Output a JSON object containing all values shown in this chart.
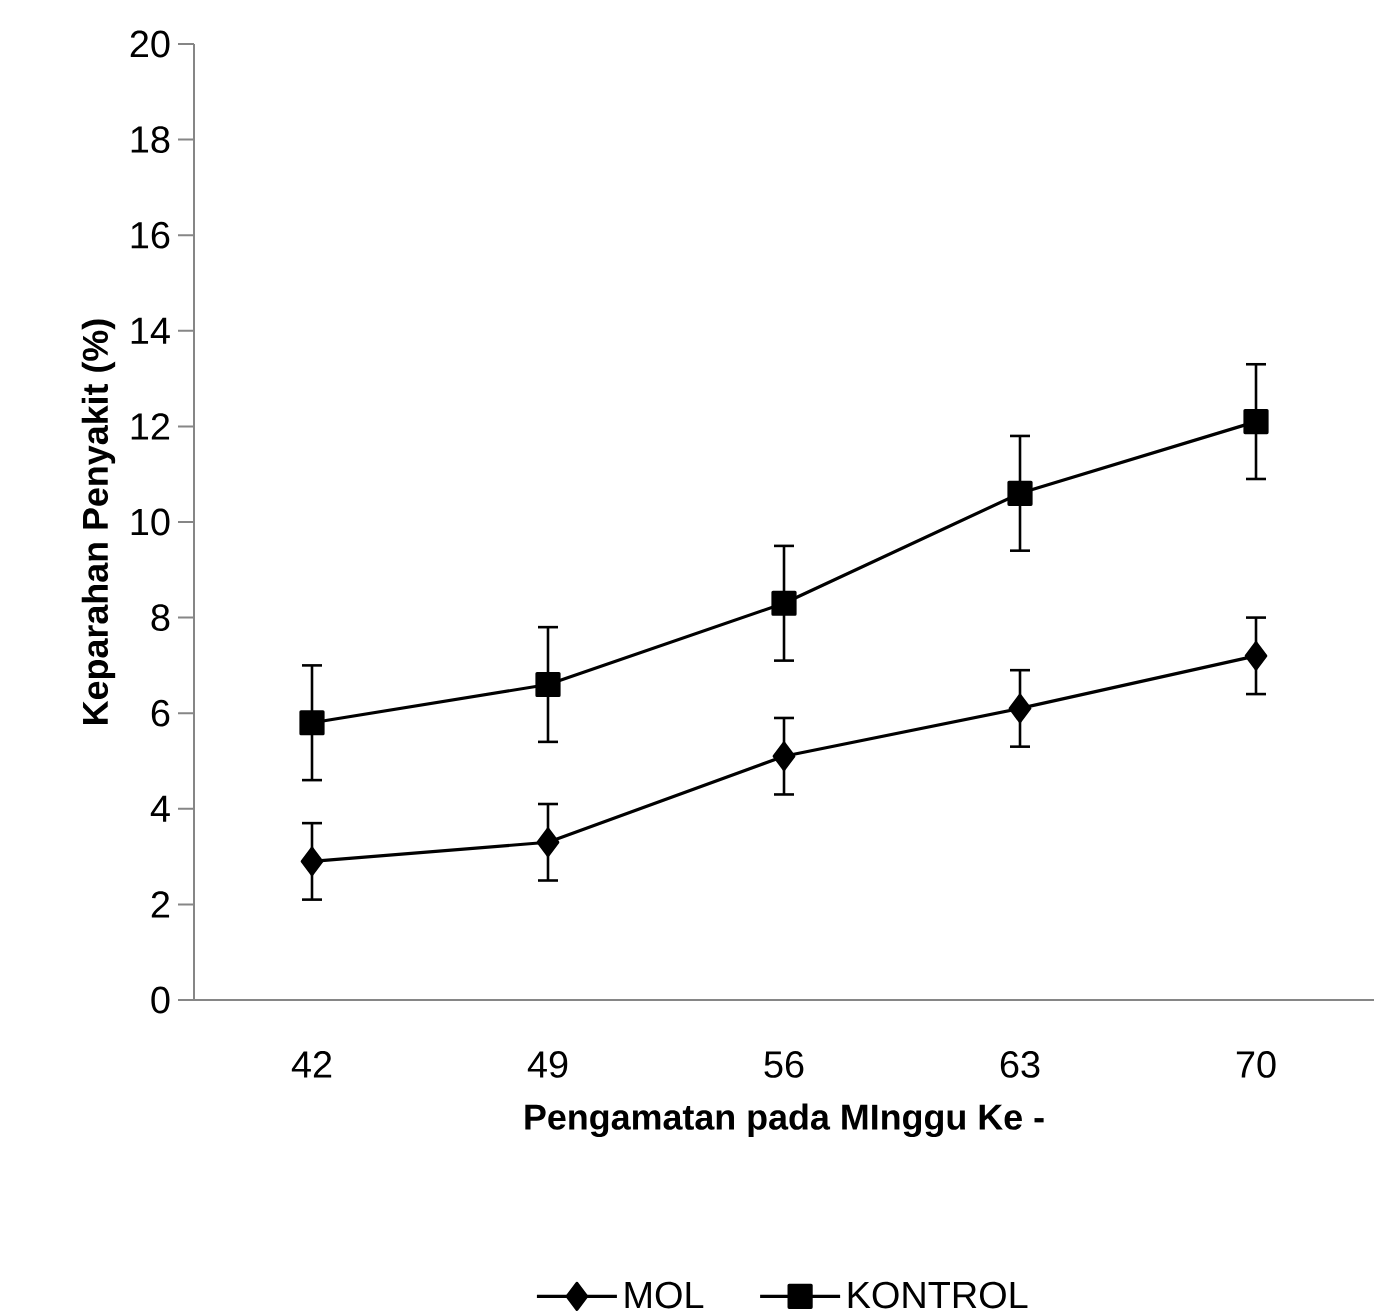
{
  "chart_data": {
    "type": "line",
    "xlabel": "Pengamatan pada MInggu Ke -",
    "ylabel": "Keparahan Penyakit (%)",
    "categories": [
      "42",
      "49",
      "56",
      "63",
      "70"
    ],
    "series": [
      {
        "name": "MOL",
        "color": "#000000",
        "marker": "diamond",
        "values": [
          2.9,
          3.3,
          5.1,
          6.1,
          7.2
        ],
        "errors": [
          0.8,
          0.8,
          0.8,
          0.8,
          0.8
        ]
      },
      {
        "name": "KONTROL",
        "color": "#000000",
        "marker": "square",
        "values": [
          5.8,
          6.6,
          8.3,
          10.6,
          12.1
        ],
        "errors": [
          1.2,
          1.2,
          1.2,
          1.2,
          1.2
        ]
      }
    ],
    "ylim": [
      0,
      20
    ],
    "yticks": [
      0,
      2,
      4,
      6,
      8,
      10,
      12,
      14,
      16,
      18,
      20
    ],
    "legend": "bottom",
    "grid": false,
    "line_style": "solid"
  }
}
